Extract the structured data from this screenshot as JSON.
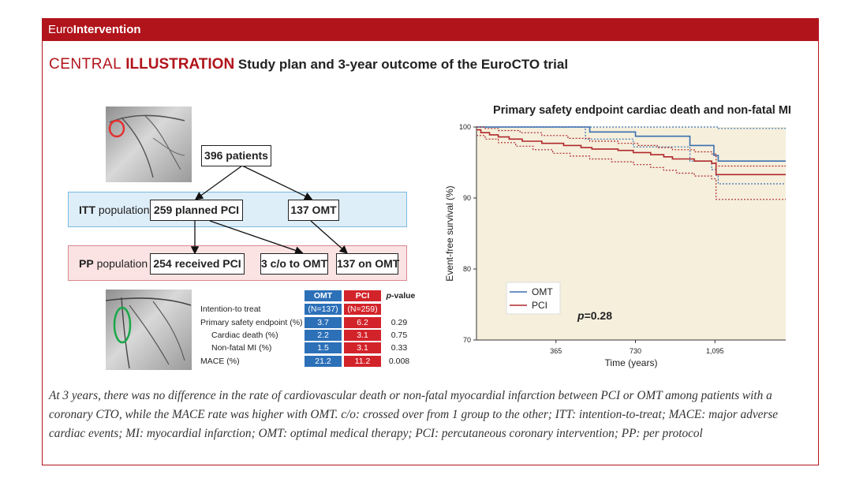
{
  "banner": {
    "brand_light": "Euro",
    "brand_bold": "Intervention"
  },
  "header": {
    "part1": "CENTRAL ",
    "part2": "ILLUSTRATION",
    "part3": " Study plan and 3-year outcome of the EuroCTO trial"
  },
  "flow": {
    "total": "396 patients",
    "itt_label_bold": "ITT",
    "itt_label_rest": " population",
    "itt_pci": "259 planned PCI",
    "itt_omt": "137 OMT",
    "pp_label_bold": "PP",
    "pp_label_rest": " population",
    "pp_pci": "254 received PCI",
    "pp_co": "3 c/o  to OMT",
    "pp_omt": "137 on OMT"
  },
  "table": {
    "col_omt": "OMT",
    "col_pci": "PCI",
    "col_p": "p",
    "col_p_suffix": "-value",
    "rows": [
      {
        "label": "Intention-to treat",
        "omt": "(N=137)",
        "pci": "(N=259)",
        "p": ""
      },
      {
        "label": "Primary safety endpoint (%)",
        "omt": "3.7",
        "pci": "6.2",
        "p": "0.29"
      },
      {
        "label": "Cardiac death (%)",
        "omt": "2.2",
        "pci": "3.1",
        "p": "0.75"
      },
      {
        "label": "Non-fatal MI (%)",
        "omt": "1.5",
        "pci": "3.1",
        "p": "0.33"
      },
      {
        "label": "MACE (%)",
        "omt": "21.2",
        "pci": "11.2",
        "p": "0.008"
      }
    ]
  },
  "chart_data": {
    "type": "line",
    "title": "Primary safety endpoint cardiac death and non-fatal MI",
    "xlabel": "Time (years)",
    "ylabel": "Event-free survival (%)",
    "xlim": [
      0,
      1420
    ],
    "ylim": [
      70,
      100
    ],
    "xticks": [
      365,
      730,
      1095
    ],
    "xtick_labels": [
      "365",
      "730",
      "1,095"
    ],
    "yticks": [
      70,
      80,
      90,
      100
    ],
    "ytick_labels": [
      "70",
      "80",
      "90",
      "100"
    ],
    "annotation": "p=0.28",
    "annotation_p": "p",
    "annotation_rest": "=0.28",
    "colors": {
      "omt": "#3a6fb0",
      "pci": "#b0282b",
      "bg": "#f5efdc"
    },
    "series": [
      {
        "name": "OMT",
        "style": "solid",
        "color": "#3a6fb0",
        "points": [
          [
            0,
            100
          ],
          [
            500,
            100
          ],
          [
            520,
            99.3
          ],
          [
            700,
            99.3
          ],
          [
            730,
            98.7
          ],
          [
            950,
            98.7
          ],
          [
            980,
            97.4
          ],
          [
            1060,
            97.4
          ],
          [
            1090,
            96
          ],
          [
            1110,
            95.2
          ],
          [
            1420,
            95.2
          ]
        ]
      },
      {
        "name": "OMT CI upper",
        "style": "dotted",
        "color": "#3a6fb0",
        "points": [
          [
            0,
            100
          ],
          [
            1100,
            100
          ],
          [
            1110,
            99.8
          ],
          [
            1420,
            99.8
          ]
        ]
      },
      {
        "name": "OMT CI lower",
        "style": "dotted",
        "color": "#3a6fb0",
        "points": [
          [
            0,
            100
          ],
          [
            490,
            100
          ],
          [
            500,
            98.3
          ],
          [
            700,
            98.3
          ],
          [
            720,
            97.2
          ],
          [
            950,
            97.2
          ],
          [
            980,
            95.2
          ],
          [
            1060,
            95.2
          ],
          [
            1080,
            94
          ],
          [
            1100,
            93.2
          ],
          [
            1110,
            92
          ],
          [
            1420,
            92
          ]
        ]
      },
      {
        "name": "PCI",
        "style": "solid",
        "color": "#b0282b",
        "points": [
          [
            0,
            99.6
          ],
          [
            20,
            99.2
          ],
          [
            60,
            98.9
          ],
          [
            100,
            98.6
          ],
          [
            150,
            98.3
          ],
          [
            210,
            98
          ],
          [
            300,
            97.7
          ],
          [
            400,
            97.4
          ],
          [
            480,
            97.1
          ],
          [
            530,
            96.9
          ],
          [
            650,
            96.7
          ],
          [
            720,
            96.4
          ],
          [
            800,
            96.1
          ],
          [
            860,
            95.8
          ],
          [
            900,
            95.5
          ],
          [
            1000,
            95.2
          ],
          [
            1080,
            94.9
          ],
          [
            1100,
            93.3
          ],
          [
            1420,
            93.3
          ]
        ]
      },
      {
        "name": "PCI CI upper",
        "style": "dotted",
        "color": "#b0282b",
        "points": [
          [
            0,
            100
          ],
          [
            40,
            99.8
          ],
          [
            100,
            99.5
          ],
          [
            200,
            99.2
          ],
          [
            300,
            98.8
          ],
          [
            420,
            98.4
          ],
          [
            520,
            98
          ],
          [
            650,
            97.7
          ],
          [
            740,
            97.4
          ],
          [
            830,
            97.1
          ],
          [
            900,
            96.8
          ],
          [
            1000,
            96.5
          ],
          [
            1080,
            96.2
          ],
          [
            1100,
            94.5
          ],
          [
            1420,
            94.5
          ]
        ]
      },
      {
        "name": "PCI CI lower",
        "style": "dotted",
        "color": "#b0282b",
        "points": [
          [
            0,
            98.8
          ],
          [
            40,
            98.3
          ],
          [
            100,
            97.8
          ],
          [
            180,
            97.3
          ],
          [
            260,
            96.8
          ],
          [
            350,
            96.3
          ],
          [
            430,
            95.9
          ],
          [
            520,
            95.5
          ],
          [
            620,
            95.1
          ],
          [
            720,
            94.7
          ],
          [
            800,
            94.3
          ],
          [
            860,
            93.9
          ],
          [
            920,
            93.5
          ],
          [
            1000,
            93.1
          ],
          [
            1080,
            92.7
          ],
          [
            1100,
            89.8
          ],
          [
            1420,
            89.8
          ]
        ]
      }
    ],
    "legend": [
      {
        "label": "OMT",
        "color": "#3a6fb0"
      },
      {
        "label": "PCI",
        "color": "#b0282b"
      }
    ]
  },
  "caption": "At 3 years, there was no difference in the rate of cardiovascular death or non-fatal myocardial infarction between PCI or OMT among patients with a coronary CTO, while the MACE rate was higher with OMT. c/o: crossed over from 1 group to the other; ITT: intention-to-treat; MACE: major adverse cardiac events; MI: myocardial infarction; OMT: optimal medical therapy; PCI: percutaneous coronary intervention; PP: per protocol"
}
